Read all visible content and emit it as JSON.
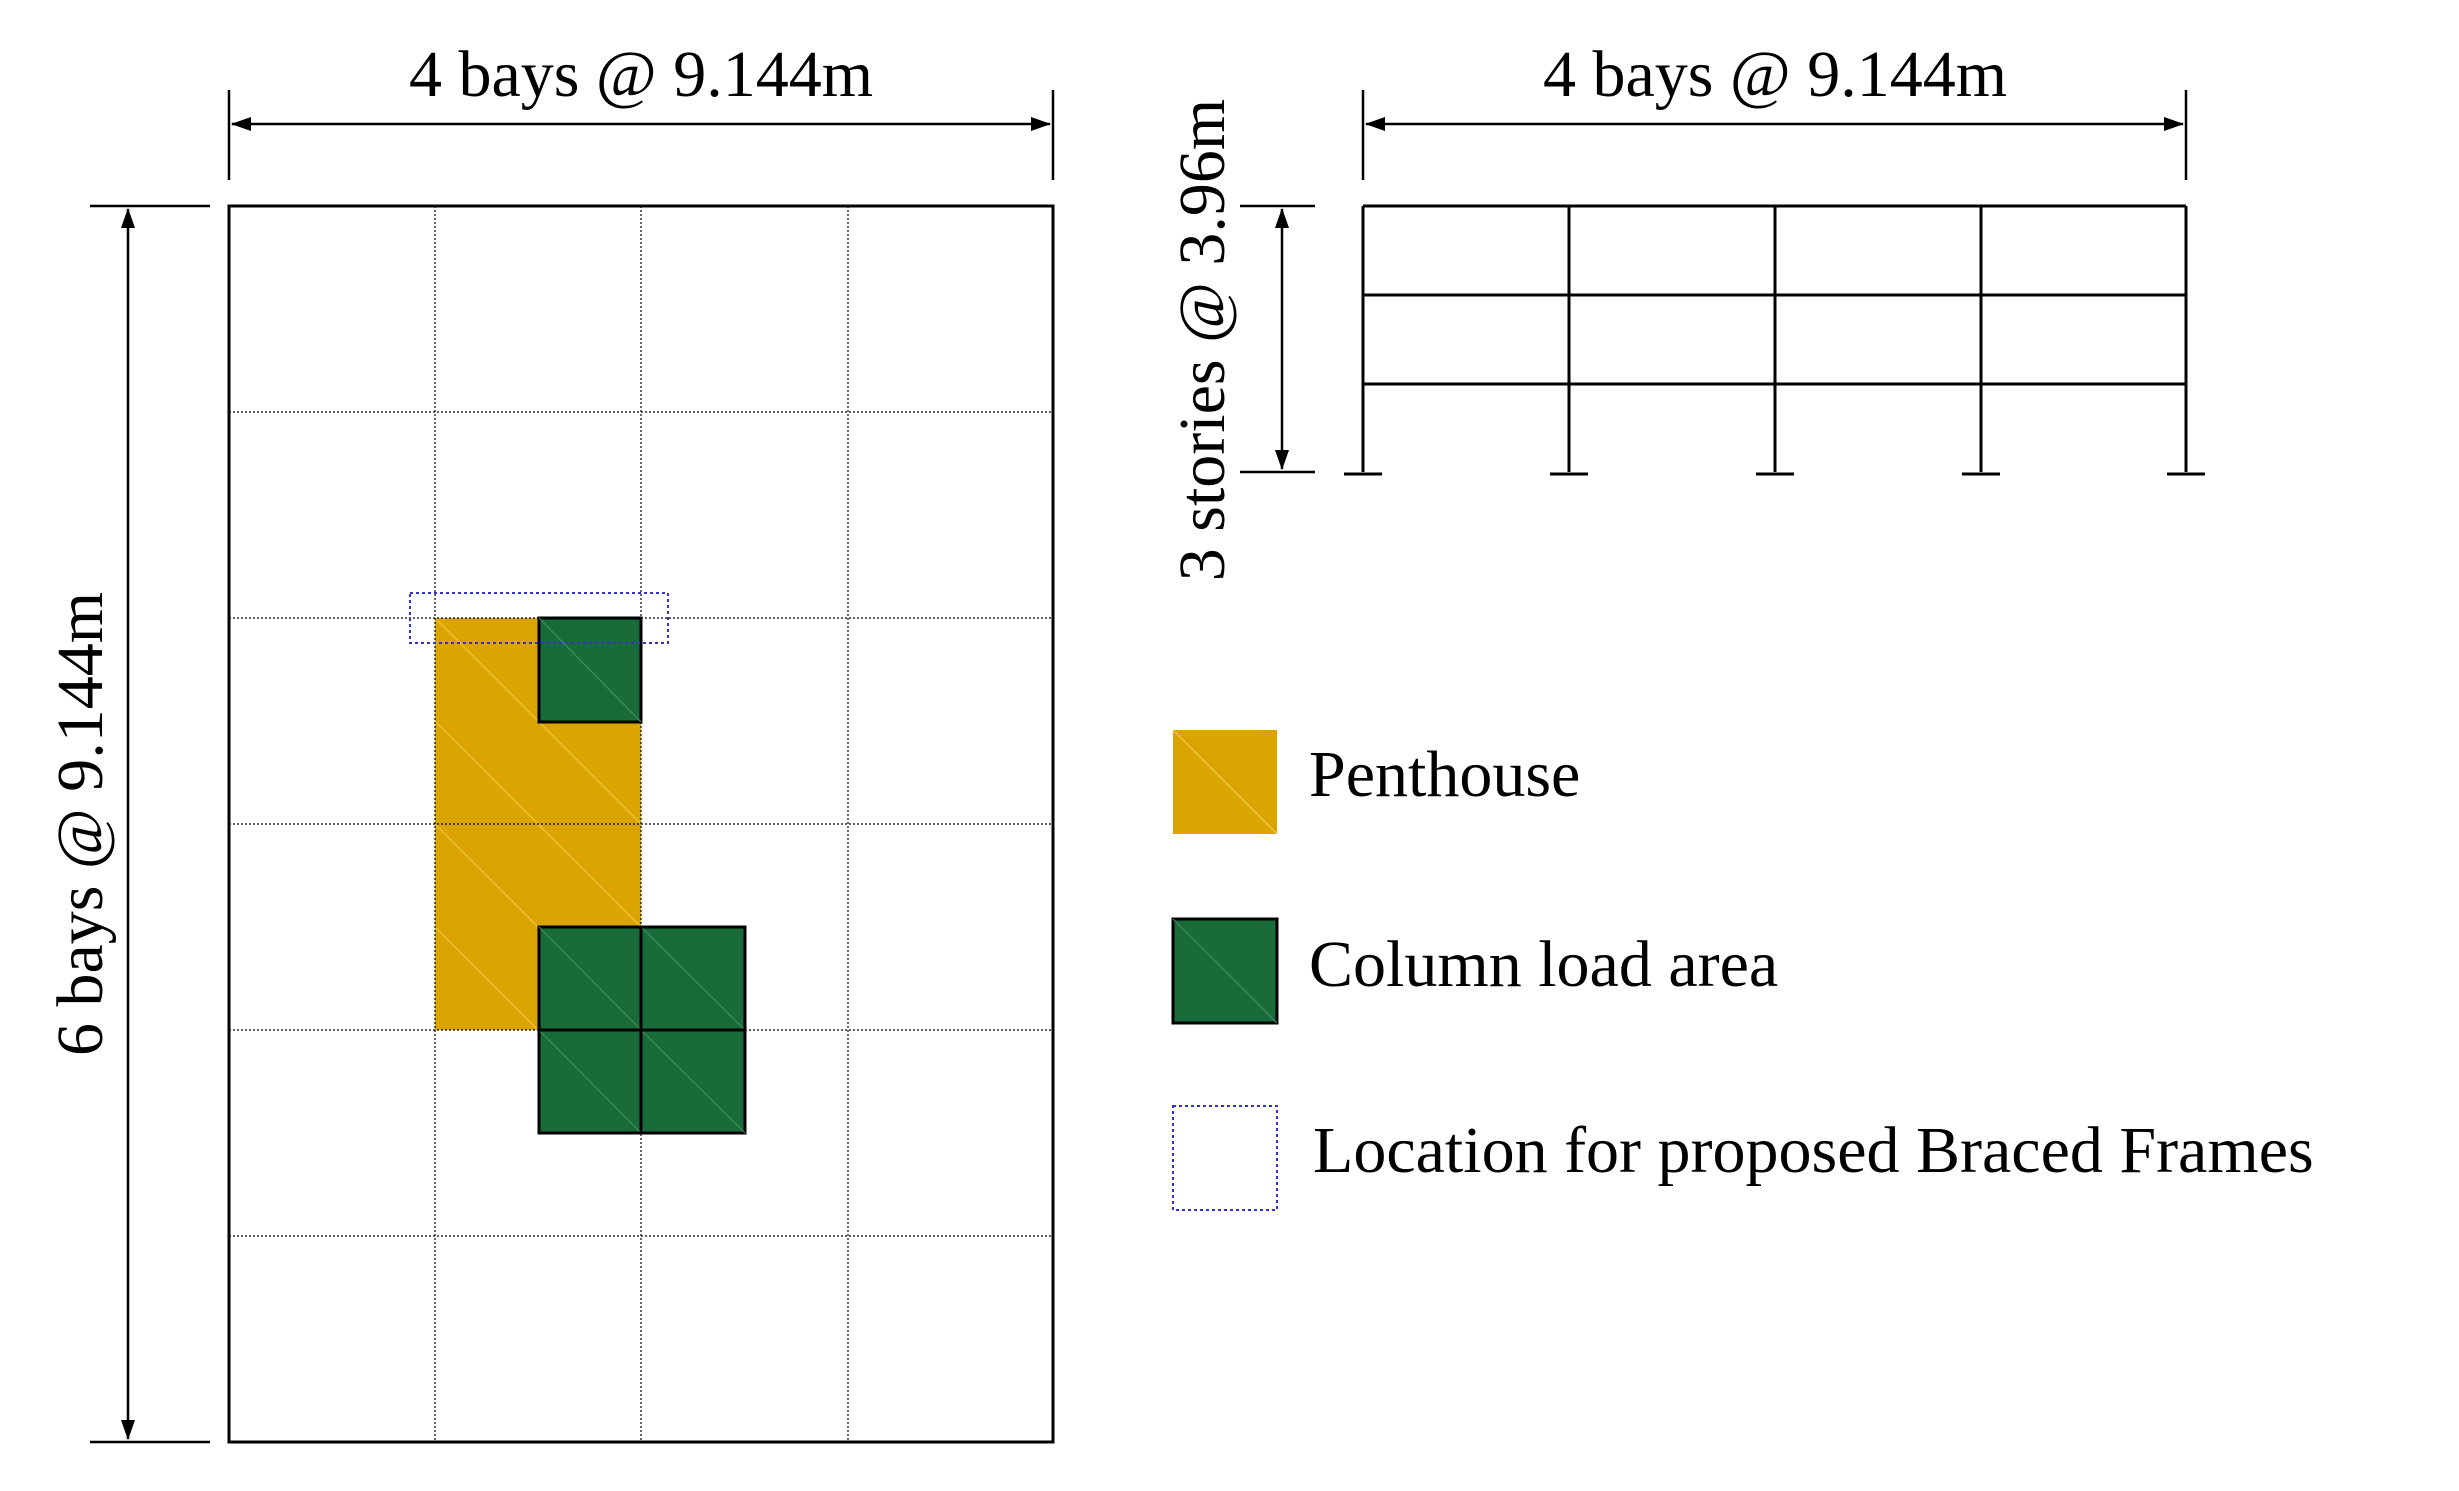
{
  "plan": {
    "width_label": "4 bays @ 9.144m",
    "height_label": "6 bays @ 9.144m",
    "bays_x": 4,
    "bays_y": 6
  },
  "elevation": {
    "width_label": "4 bays @ 9.144m",
    "height_label": "3 stories @ 3.96m",
    "bays": 4,
    "stories": 3
  },
  "legend": {
    "items": [
      {
        "key": "penthouse",
        "label": "Penthouse",
        "color": "#DBA400"
      },
      {
        "key": "column_load",
        "label": "Column load area",
        "color": "#1A6B3A"
      },
      {
        "key": "braced",
        "label": "Location for proposed Braced Frames",
        "color": "#3333CC"
      }
    ]
  },
  "colors": {
    "penthouse": "#DBA400",
    "column_load": "#1A6B3A",
    "braced": "#3333CC",
    "line": "#000000"
  }
}
